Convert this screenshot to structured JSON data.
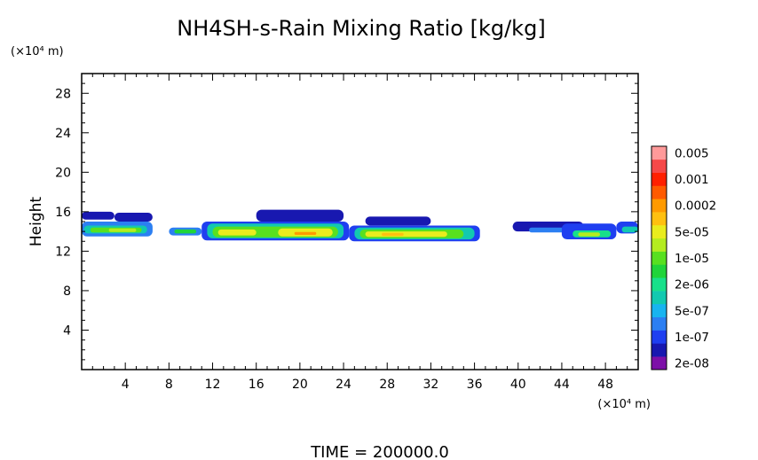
{
  "chart_data": {
    "type": "heatmap",
    "title": "NH4SH-s-Rain Mixing Ratio [kg/kg]",
    "ylabel": "Height",
    "x_unit": "(×10⁴ m)",
    "y_unit": "(×10⁴ m)",
    "xlim": [
      0,
      51
    ],
    "ylim": [
      0,
      30
    ],
    "x_ticks": [
      4,
      8,
      12,
      16,
      20,
      24,
      28,
      32,
      36,
      40,
      44,
      48
    ],
    "y_ticks": [
      4,
      8,
      12,
      16,
      20,
      24,
      28
    ],
    "footer": "TIME = 200000.0",
    "legend": {
      "levels": [
        {
          "label": "2e-08",
          "color": "#7d10a8"
        },
        {
          "label": "",
          "color": "#1818b0"
        },
        {
          "label": "1e-07",
          "color": "#1f3ff0"
        },
        {
          "label": "",
          "color": "#2c7ff2"
        },
        {
          "label": "5e-07",
          "color": "#18b4f0"
        },
        {
          "label": "",
          "color": "#12c9b0"
        },
        {
          "label": "2e-06",
          "color": "#18e08a"
        },
        {
          "label": "",
          "color": "#20d43a"
        },
        {
          "label": "1e-05",
          "color": "#58e020"
        },
        {
          "label": "",
          "color": "#b4ec20"
        },
        {
          "label": "5e-05",
          "color": "#e9ec1e"
        },
        {
          "label": "",
          "color": "#ffc010"
        },
        {
          "label": "0.0002",
          "color": "#ff9a00"
        },
        {
          "label": "",
          "color": "#ff5a00"
        },
        {
          "label": "0.001",
          "color": "#ff2000"
        },
        {
          "label": "",
          "color": "#f54848"
        },
        {
          "label": "0.005",
          "color": "#ff9a9a"
        }
      ]
    },
    "regions": [
      {
        "x0": 0.0,
        "x1": 3.0,
        "y0": 15.2,
        "y1": 16.0,
        "level": 1
      },
      {
        "x0": 3.0,
        "x1": 6.5,
        "y0": 15.0,
        "y1": 15.9,
        "level": 1
      },
      {
        "x0": 0.0,
        "x1": 6.5,
        "y0": 13.5,
        "y1": 15.0,
        "level": 3
      },
      {
        "x0": 0.2,
        "x1": 6.0,
        "y0": 13.8,
        "y1": 14.6,
        "level": 5
      },
      {
        "x0": 0.8,
        "x1": 5.5,
        "y0": 13.9,
        "y1": 14.4,
        "level": 8
      },
      {
        "x0": 2.5,
        "x1": 5.0,
        "y0": 13.95,
        "y1": 14.3,
        "level": 9
      },
      {
        "x0": 8.0,
        "x1": 11.0,
        "y0": 13.6,
        "y1": 14.4,
        "level": 3
      },
      {
        "x0": 8.5,
        "x1": 10.5,
        "y0": 13.8,
        "y1": 14.2,
        "level": 7
      },
      {
        "x0": 11.0,
        "x1": 24.5,
        "y0": 13.1,
        "y1": 15.0,
        "level": 2
      },
      {
        "x0": 16.0,
        "x1": 24.0,
        "y0": 15.0,
        "y1": 16.2,
        "level": 1
      },
      {
        "x0": 11.5,
        "x1": 24.0,
        "y0": 13.3,
        "y1": 14.8,
        "level": 5
      },
      {
        "x0": 12.0,
        "x1": 23.5,
        "y0": 13.4,
        "y1": 14.5,
        "level": 8
      },
      {
        "x0": 12.5,
        "x1": 16.0,
        "y0": 13.6,
        "y1": 14.2,
        "level": 10
      },
      {
        "x0": 18.0,
        "x1": 23.0,
        "y0": 13.5,
        "y1": 14.3,
        "level": 10
      },
      {
        "x0": 19.5,
        "x1": 21.5,
        "y0": 13.65,
        "y1": 13.95,
        "level": 12
      },
      {
        "x0": 24.5,
        "x1": 36.5,
        "y0": 13.0,
        "y1": 14.6,
        "level": 2
      },
      {
        "x0": 26.0,
        "x1": 32.0,
        "y0": 14.6,
        "y1": 15.5,
        "level": 1
      },
      {
        "x0": 25.0,
        "x1": 36.0,
        "y0": 13.2,
        "y1": 14.4,
        "level": 5
      },
      {
        "x0": 25.5,
        "x1": 35.0,
        "y0": 13.3,
        "y1": 14.2,
        "level": 8
      },
      {
        "x0": 26.0,
        "x1": 33.5,
        "y0": 13.45,
        "y1": 14.0,
        "level": 10
      },
      {
        "x0": 27.5,
        "x1": 29.5,
        "y0": 13.55,
        "y1": 13.85,
        "level": 11
      },
      {
        "x0": 39.5,
        "x1": 46.0,
        "y0": 14.0,
        "y1": 15.0,
        "level": 1
      },
      {
        "x0": 41.0,
        "x1": 44.5,
        "y0": 13.9,
        "y1": 14.4,
        "level": 3
      },
      {
        "x0": 44.0,
        "x1": 49.0,
        "y0": 13.2,
        "y1": 14.8,
        "level": 2
      },
      {
        "x0": 45.0,
        "x1": 48.5,
        "y0": 13.4,
        "y1": 14.1,
        "level": 6
      },
      {
        "x0": 45.5,
        "x1": 47.5,
        "y0": 13.5,
        "y1": 13.9,
        "level": 9
      },
      {
        "x0": 49.0,
        "x1": 51.0,
        "y0": 13.8,
        "y1": 15.0,
        "level": 2
      },
      {
        "x0": 49.5,
        "x1": 51.0,
        "y0": 13.9,
        "y1": 14.5,
        "level": 5
      }
    ]
  }
}
